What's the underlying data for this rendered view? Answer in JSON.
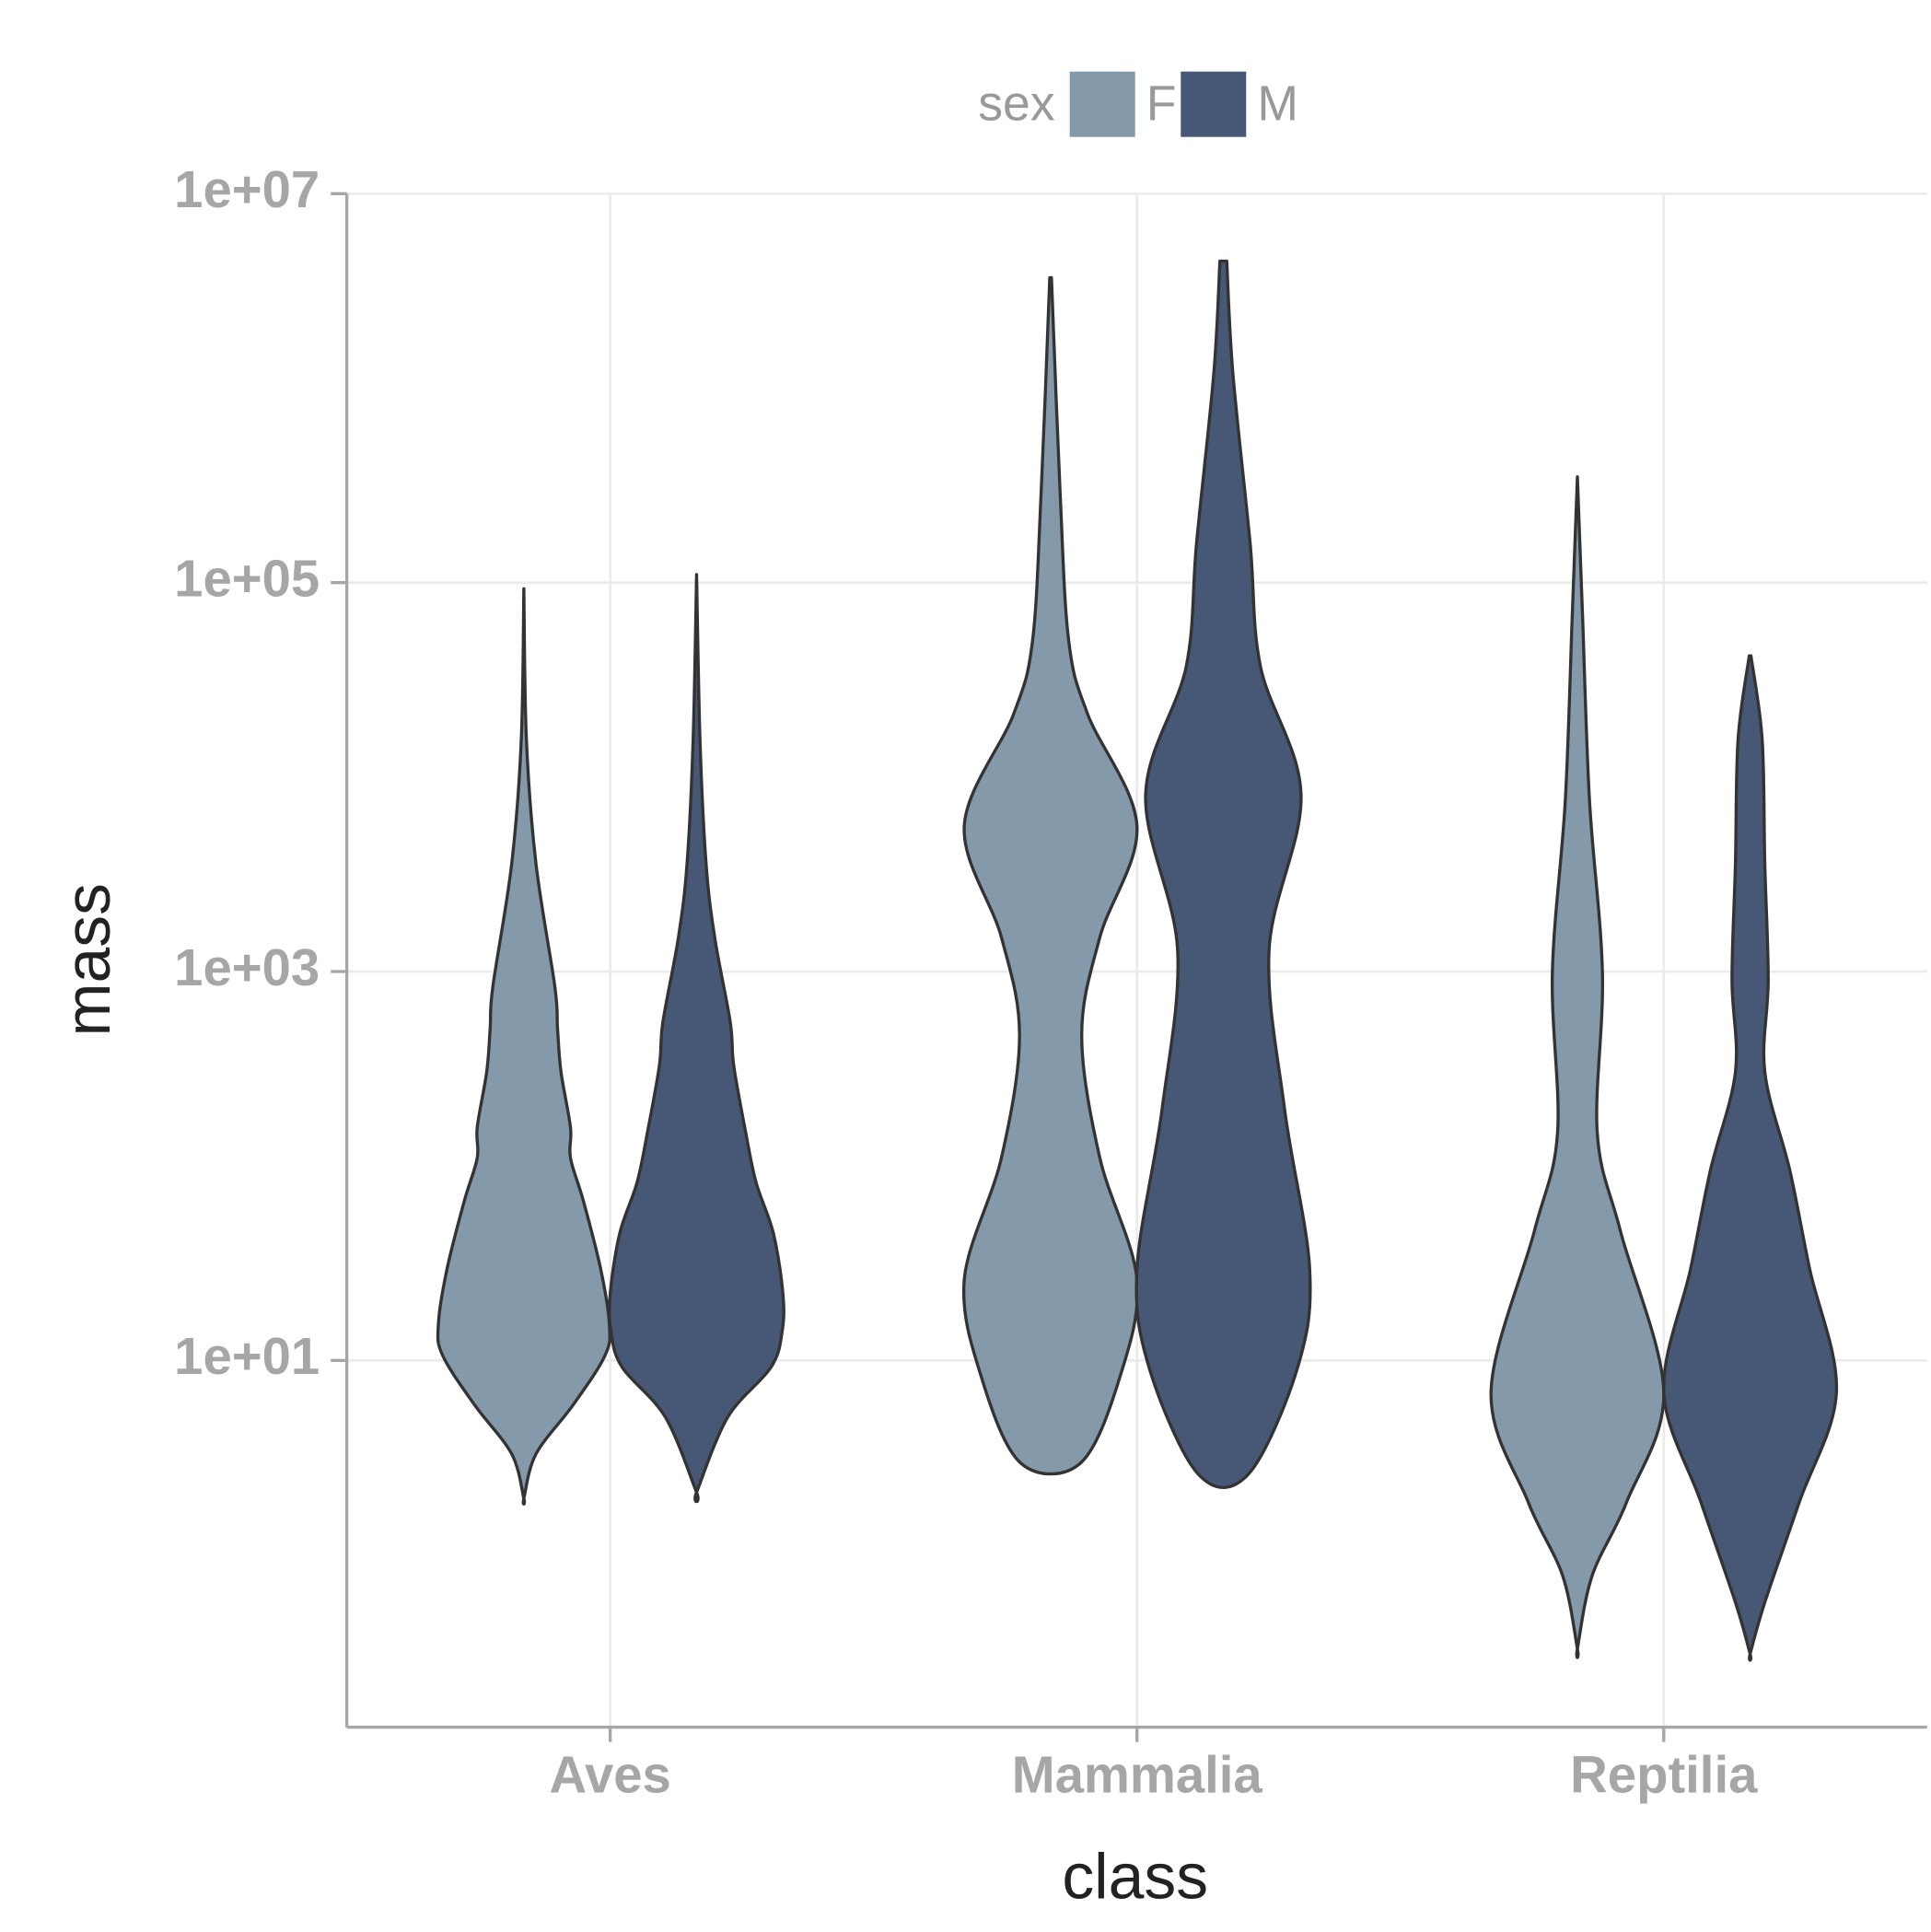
{
  "chart_data": {
    "type": "violin",
    "x_label": "class",
    "y_label": "mass",
    "legend_title": "sex",
    "legend_position": "top",
    "log_scale": true,
    "grid": true,
    "categories": [
      "Aves",
      "Mammalia",
      "Reptilia"
    ],
    "ylim": [
      0.13,
      10000000
    ],
    "yticks": [
      {
        "value": 10,
        "label": "1e+01"
      },
      {
        "value": 1000,
        "label": "1e+03"
      },
      {
        "value": 100000,
        "label": "1e+05"
      },
      {
        "value": 10000000,
        "label": "1e+07"
      }
    ],
    "series": [
      {
        "name": "F",
        "color": "#8499a9",
        "violins": [
          {
            "mass": [
              93000,
              15500,
              3600,
              830,
              510,
              305,
              158,
              110,
              66,
              29.5,
              15.3,
              10.6,
              5.9,
              3.3,
              1.95
            ],
            "density": [
              0,
              0.03,
              0.14,
              0.36,
              0.39,
              0.43,
              0.54,
              0.54,
              0.69,
              0.89,
              0.99,
              0.94,
              0.57,
              0.14,
              0
            ]
          },
          {
            "mass": [
              3700000,
              290000,
              50000,
              21000,
              5600,
              1500,
              470,
              110,
              26,
              7.9,
              2.95
            ],
            "density": [
              0.01,
              0.11,
              0.21,
              0.43,
              1,
              0.57,
              0.36,
              0.57,
              1,
              0.79,
              0.34
            ]
          },
          {
            "mass": [
              350000,
              67000,
              7600,
              980,
              148,
              46,
              6.9,
              1.87,
              0.78,
              0.33
            ],
            "density": [
              0,
              0.06,
              0.14,
              0.29,
              0.23,
              0.5,
              1,
              0.57,
              0.17,
              0
            ]
          }
        ]
      },
      {
        "name": "M",
        "color": "#475876",
        "violins": [
          {
            "mass": [
              110000,
              15500,
              3600,
              1500,
              550,
              330,
              148,
              82,
              45,
              22,
              14,
              9.2,
              5.1,
              2.1
            ],
            "density": [
              0,
              0.04,
              0.11,
              0.21,
              0.39,
              0.43,
              0.57,
              0.69,
              0.89,
              1,
              0.99,
              0.86,
              0.36,
              0
            ]
          },
          {
            "mass": [
              4500000,
              1200000,
              160000,
              37000,
              8100,
              1300,
              195,
              29.5,
              9.2,
              2.6
            ],
            "density": [
              0.04,
              0.11,
              0.31,
              0.43,
              0.9,
              0.53,
              0.71,
              1,
              0.86,
              0.29
            ]
          },
          {
            "mass": [
              42000,
              15500,
              3600,
              910,
              305,
              95,
              29.5,
              6.9,
              1.87,
              0.57,
              0.31
            ],
            "density": [
              0.01,
              0.14,
              0.17,
              0.21,
              0.17,
              0.46,
              0.69,
              1,
              0.57,
              0.17,
              0
            ]
          }
        ]
      }
    ]
  }
}
